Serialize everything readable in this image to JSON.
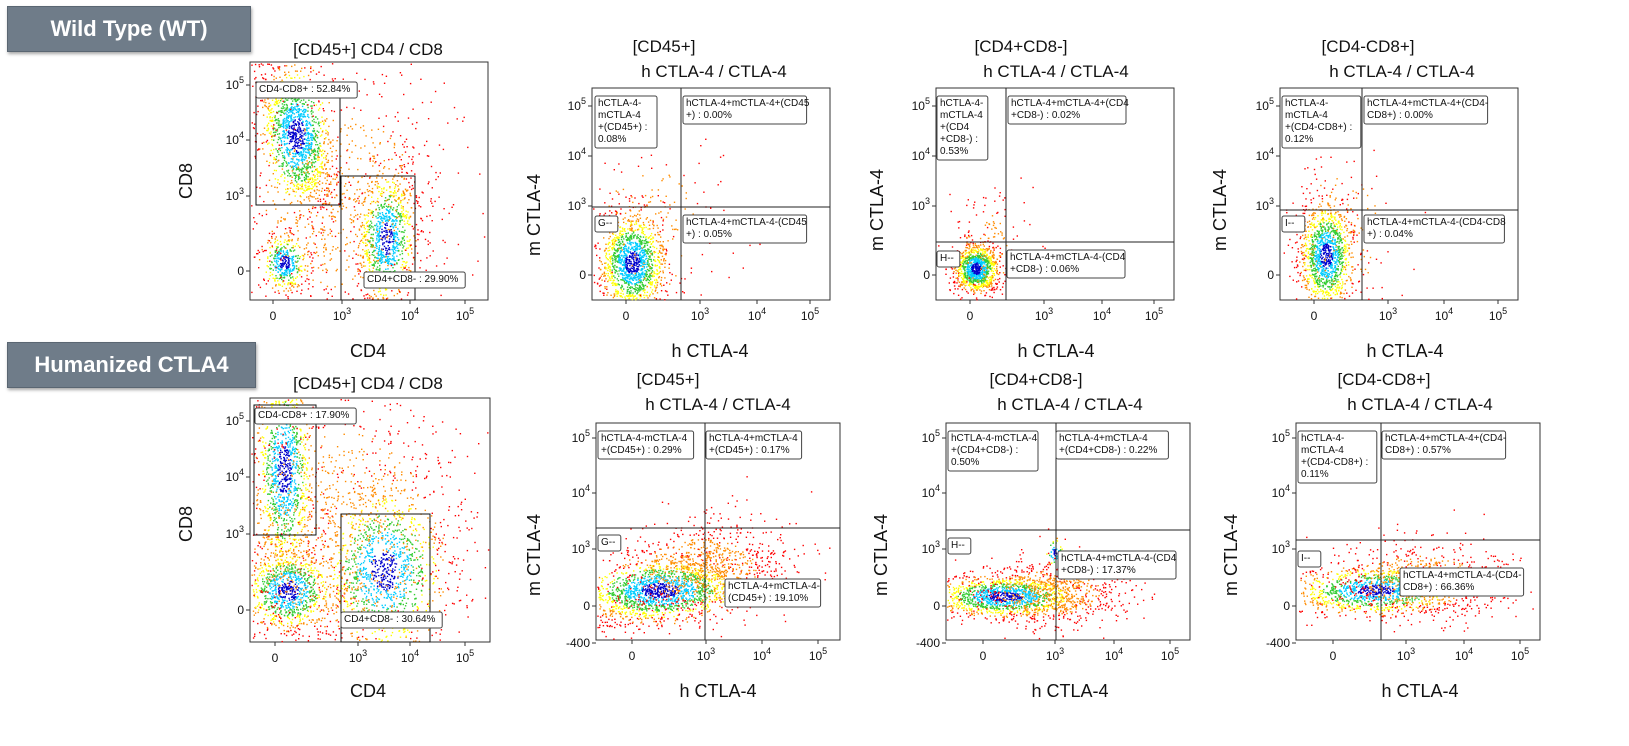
{
  "rows": [
    {
      "label": "Wild Type (WT)"
    },
    {
      "label": "Humanized CTLA4"
    }
  ],
  "colors": {
    "badge": "#6f7c89",
    "badge_text": "#ffffff",
    "density_scale": [
      "#ff0000",
      "#ff8c00",
      "#ffff00",
      "#33cc33",
      "#00ccff",
      "#0000cc"
    ]
  },
  "chart_data": [
    {
      "id": "wt-cd4-cd8",
      "row": 0,
      "type": "scatter",
      "subtype": "flow-cytometry-density",
      "title": [
        "[CD45+] CD4 / CD8"
      ],
      "xlabel": "CD4",
      "ylabel": "CD8",
      "x_ticks": [
        "0",
        "10^3",
        "10^4",
        "10^5"
      ],
      "y_ticks": [
        "0",
        "10^3",
        "10^4",
        "10^5"
      ],
      "gates": [
        {
          "name": "CD4-CD8+",
          "label": "CD4-CD8+ : 52.84%",
          "percent": 52.84
        },
        {
          "name": "CD4+CD8-",
          "label": "CD4+CD8- : 29.90%",
          "percent": 29.9
        }
      ]
    },
    {
      "id": "wt-cd45-ctla4",
      "row": 0,
      "type": "scatter",
      "subtype": "flow-cytometry-density",
      "title": [
        "[CD45+]",
        "h CTLA-4 / CTLA-4"
      ],
      "xlabel": "h CTLA-4",
      "ylabel": "m CTLA-4",
      "x_ticks": [
        "0",
        "10^3",
        "10^4",
        "10^5"
      ],
      "y_ticks": [
        "0",
        "10^3",
        "10^4",
        "10^5"
      ],
      "gates": [
        {
          "name": "hCTLA-4-mCTLA-4+",
          "label": [
            "hCTLA-4-",
            "mCTLA-4",
            "+(CD45+) :",
            "0.08%"
          ],
          "percent": 0.08
        },
        {
          "name": "hCTLA-4+mCTLA-4+",
          "label": [
            "hCTLA-4+mCTLA-4+(CD45",
            "+) : 0.00%"
          ],
          "percent": 0.0
        },
        {
          "name": "G--",
          "label": [
            "G--"
          ]
        },
        {
          "name": "hCTLA-4+mCTLA-4-",
          "label": [
            "hCTLA-4+mCTLA-4-(CD45",
            "+) : 0.05%"
          ],
          "percent": 0.05
        }
      ]
    },
    {
      "id": "wt-cd4pos-ctla4",
      "row": 0,
      "type": "scatter",
      "subtype": "flow-cytometry-density",
      "title": [
        "[CD4+CD8-]",
        "h CTLA-4 / CTLA-4"
      ],
      "xlabel": "h CTLA-4",
      "ylabel": "m CTLA-4",
      "x_ticks": [
        "0",
        "10^3",
        "10^4",
        "10^5"
      ],
      "y_ticks": [
        "0",
        "10^3",
        "10^4",
        "10^5"
      ],
      "gates": [
        {
          "name": "hCTLA-4-mCTLA-4+",
          "label": [
            "hCTLA-4-",
            "mCTLA-4",
            "+(CD4",
            "+CD8-) :",
            "0.53%"
          ],
          "percent": 0.53
        },
        {
          "name": "hCTLA-4+mCTLA-4+",
          "label": [
            "hCTLA-4+mCTLA-4+(CD4",
            "+CD8-) : 0.02%"
          ],
          "percent": 0.02
        },
        {
          "name": "H--",
          "label": [
            "H--"
          ]
        },
        {
          "name": "hCTLA-4+mCTLA-4-",
          "label": [
            "hCTLA-4+mCTLA-4-(CD4",
            "+CD8-) : 0.06%"
          ],
          "percent": 0.06
        }
      ]
    },
    {
      "id": "wt-cd8pos-ctla4",
      "row": 0,
      "type": "scatter",
      "subtype": "flow-cytometry-density",
      "title": [
        "[CD4-CD8+]",
        "h CTLA-4 / CTLA-4"
      ],
      "xlabel": "h CTLA-4",
      "ylabel": "m CTLA-4",
      "x_ticks": [
        "0",
        "10^3",
        "10^4",
        "10^5"
      ],
      "y_ticks": [
        "0",
        "10^3",
        "10^4",
        "10^5"
      ],
      "gates": [
        {
          "name": "hCTLA-4-mCTLA-4+",
          "label": [
            "hCTLA-4-",
            "mCTLA-4",
            "+(CD4-CD8+) :",
            "0.12%"
          ],
          "percent": 0.12
        },
        {
          "name": "hCTLA-4+mCTLA-4+",
          "label": [
            "hCTLA-4+mCTLA-4+(CD4-",
            "CD8+) : 0.00%"
          ],
          "percent": 0.0
        },
        {
          "name": "I--",
          "label": [
            "I--"
          ]
        },
        {
          "name": "hCTLA-4+mCTLA-4-",
          "label": [
            "hCTLA-4+mCTLA-4-(CD4-CD8",
            "+) : 0.04%"
          ],
          "percent": 0.04
        }
      ]
    },
    {
      "id": "hu-cd4-cd8",
      "row": 1,
      "type": "scatter",
      "subtype": "flow-cytometry-density",
      "title": [
        "[CD45+] CD4 / CD8"
      ],
      "xlabel": "CD4",
      "ylabel": "CD8",
      "x_ticks": [
        "0",
        "10^3",
        "10^4",
        "10^5"
      ],
      "y_ticks": [
        "0",
        "10^3",
        "10^4",
        "10^5"
      ],
      "gates": [
        {
          "name": "CD4-CD8+",
          "label": "CD4-CD8+ : 17.90%",
          "percent": 17.9
        },
        {
          "name": "CD4+CD8-",
          "label": "CD4+CD8- : 30.64%",
          "percent": 30.64
        }
      ]
    },
    {
      "id": "hu-cd45-ctla4",
      "row": 1,
      "type": "scatter",
      "subtype": "flow-cytometry-density",
      "title": [
        "[CD45+]",
        "h CTLA-4 / CTLA-4"
      ],
      "xlabel": "h CTLA-4",
      "ylabel": "m CTLA-4",
      "x_ticks": [
        "0",
        "10^3",
        "10^4",
        "10^5"
      ],
      "y_ticks": [
        "-400",
        "0",
        "10^3",
        "10^4",
        "10^5"
      ],
      "gates": [
        {
          "name": "hCTLA-4-mCTLA-4+",
          "label": [
            "hCTLA-4-mCTLA-4",
            "+(CD45+) : 0.29%"
          ],
          "percent": 0.29
        },
        {
          "name": "hCTLA-4+mCTLA-4+",
          "label": [
            "hCTLA-4+mCTLA-4",
            "+(CD45+) : 0.17%"
          ],
          "percent": 0.17
        },
        {
          "name": "G--",
          "label": [
            "G--"
          ]
        },
        {
          "name": "hCTLA-4+mCTLA-4-",
          "label": [
            "hCTLA-4+mCTLA-4-",
            "(CD45+) : 19.10%"
          ],
          "percent": 19.1
        }
      ]
    },
    {
      "id": "hu-cd4pos-ctla4",
      "row": 1,
      "type": "scatter",
      "subtype": "flow-cytometry-density",
      "title": [
        "[CD4+CD8-]",
        "h CTLA-4 / CTLA-4"
      ],
      "xlabel": "h CTLA-4",
      "ylabel": "m CTLA-4",
      "x_ticks": [
        "0",
        "10^3",
        "10^4",
        "10^5"
      ],
      "y_ticks": [
        "-400",
        "0",
        "10^3",
        "10^4",
        "10^5"
      ],
      "gates": [
        {
          "name": "hCTLA-4-mCTLA-4+",
          "label": [
            "hCTLA-4-mCTLA-4",
            "+(CD4+CD8-) :",
            "0.50%"
          ],
          "percent": 0.5
        },
        {
          "name": "hCTLA-4+mCTLA-4+",
          "label": [
            "hCTLA-4+mCTLA-4",
            "+(CD4+CD8-) : 0.22%"
          ],
          "percent": 0.22
        },
        {
          "name": "H--",
          "label": [
            "H--"
          ]
        },
        {
          "name": "hCTLA-4+mCTLA-4-",
          "label": [
            "hCTLA-4+mCTLA-4-(CD4",
            "+CD8-) : 17.37%"
          ],
          "percent": 17.37
        }
      ]
    },
    {
      "id": "hu-cd8pos-ctla4",
      "row": 1,
      "type": "scatter",
      "subtype": "flow-cytometry-density",
      "title": [
        "[CD4-CD8+]",
        "h CTLA-4 / CTLA-4"
      ],
      "xlabel": "h CTLA-4",
      "ylabel": "m CTLA-4",
      "x_ticks": [
        "0",
        "10^3",
        "10^4",
        "10^5"
      ],
      "y_ticks": [
        "-400",
        "0",
        "10^3",
        "10^4",
        "10^5"
      ],
      "gates": [
        {
          "name": "hCTLA-4-mCTLA-4+",
          "label": [
            "hCTLA-4-",
            "mCTLA-4",
            "+(CD4-CD8+) :",
            "0.11%"
          ],
          "percent": 0.11
        },
        {
          "name": "hCTLA-4+mCTLA-4+",
          "label": [
            "hCTLA-4+mCTLA-4+(CD4-",
            "CD8+) : 0.57%"
          ],
          "percent": 0.57
        },
        {
          "name": "I--",
          "label": [
            "I--"
          ]
        },
        {
          "name": "hCTLA-4+mCTLA-4-",
          "label": [
            "hCTLA-4+mCTLA-4-(CD4-",
            "CD8+) : 66.36%"
          ],
          "percent": 66.36
        }
      ]
    }
  ]
}
